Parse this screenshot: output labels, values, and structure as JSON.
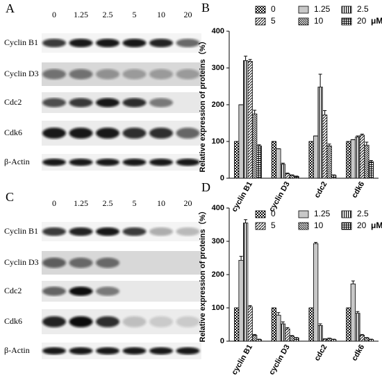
{
  "blots": [
    {
      "label": "A",
      "concentrations": [
        "0",
        "1.25",
        "2.5",
        "5",
        "10",
        "20"
      ],
      "proteins": [
        "Cyclin B1",
        "Cyclin D3",
        "Cdc2",
        "Cdk6",
        "β-Actin"
      ]
    },
    {
      "label": "C",
      "concentrations": [
        "0",
        "1.25",
        "2.5",
        "5",
        "10",
        "20"
      ],
      "proteins": [
        "Cyclin B1",
        "Cyclin D3",
        "Cdc2",
        "Cdk6",
        "β-Actin"
      ]
    }
  ],
  "chart_data": [
    {
      "type": "bar",
      "title": "B",
      "y_label": "Relative expression of proteins（%）",
      "categories": [
        "cyclin B1",
        "cyclin D3",
        "cdc2",
        "cdk6"
      ],
      "unit": "μM",
      "ylim": [
        0,
        400
      ],
      "yticks": [
        0,
        100,
        200,
        300,
        400
      ],
      "series": [
        {
          "name": "0",
          "pattern": "checker",
          "values": [
            100,
            100,
            100,
            100
          ],
          "errors": [
            0,
            0,
            0,
            0
          ]
        },
        {
          "name": "1.25",
          "pattern": "gray",
          "values": [
            200,
            80,
            115,
            105
          ],
          "errors": [
            0,
            0,
            0,
            0
          ]
        },
        {
          "name": "2.5",
          "pattern": "vertical",
          "values": [
            320,
            38,
            248,
            112
          ],
          "errors": [
            12,
            3,
            35,
            3
          ]
        },
        {
          "name": "5",
          "pattern": "diagonal",
          "values": [
            318,
            12,
            172,
            117
          ],
          "errors": [
            5,
            2,
            12,
            3
          ]
        },
        {
          "name": "10",
          "pattern": "dense",
          "values": [
            175,
            8,
            88,
            90
          ],
          "errors": [
            10,
            1,
            5,
            8
          ]
        },
        {
          "name": "20",
          "pattern": "grid",
          "values": [
            88,
            5,
            8,
            45
          ],
          "errors": [
            3,
            1,
            1,
            3
          ]
        }
      ]
    },
    {
      "type": "bar",
      "title": "D",
      "y_label": "Relative expression of proteins（%）",
      "categories": [
        "cyclin B1",
        "cyclin D3",
        "cdc2",
        "cdk6"
      ],
      "unit": "μM",
      "ylim": [
        0,
        400
      ],
      "yticks": [
        0,
        100,
        200,
        300,
        400
      ],
      "series": [
        {
          "name": "0",
          "pattern": "checker",
          "values": [
            100,
            100,
            100,
            100
          ],
          "errors": [
            0,
            0,
            0,
            0
          ]
        },
        {
          "name": "1.25",
          "pattern": "gray",
          "values": [
            243,
            78,
            293,
            172
          ],
          "errors": [
            12,
            8,
            4,
            9
          ]
        },
        {
          "name": "2.5",
          "pattern": "vertical",
          "values": [
            355,
            52,
            47,
            84
          ],
          "errors": [
            10,
            6,
            5,
            5
          ]
        },
        {
          "name": "5",
          "pattern": "diagonal",
          "values": [
            103,
            37,
            6,
            18
          ],
          "errors": [
            4,
            4,
            1,
            2
          ]
        },
        {
          "name": "10",
          "pattern": "dense",
          "values": [
            18,
            15,
            8,
            10
          ],
          "errors": [
            2,
            2,
            1,
            1
          ]
        },
        {
          "name": "20",
          "pattern": "grid",
          "values": [
            5,
            10,
            5,
            5
          ],
          "errors": [
            1,
            1,
            1,
            1
          ]
        }
      ]
    }
  ]
}
